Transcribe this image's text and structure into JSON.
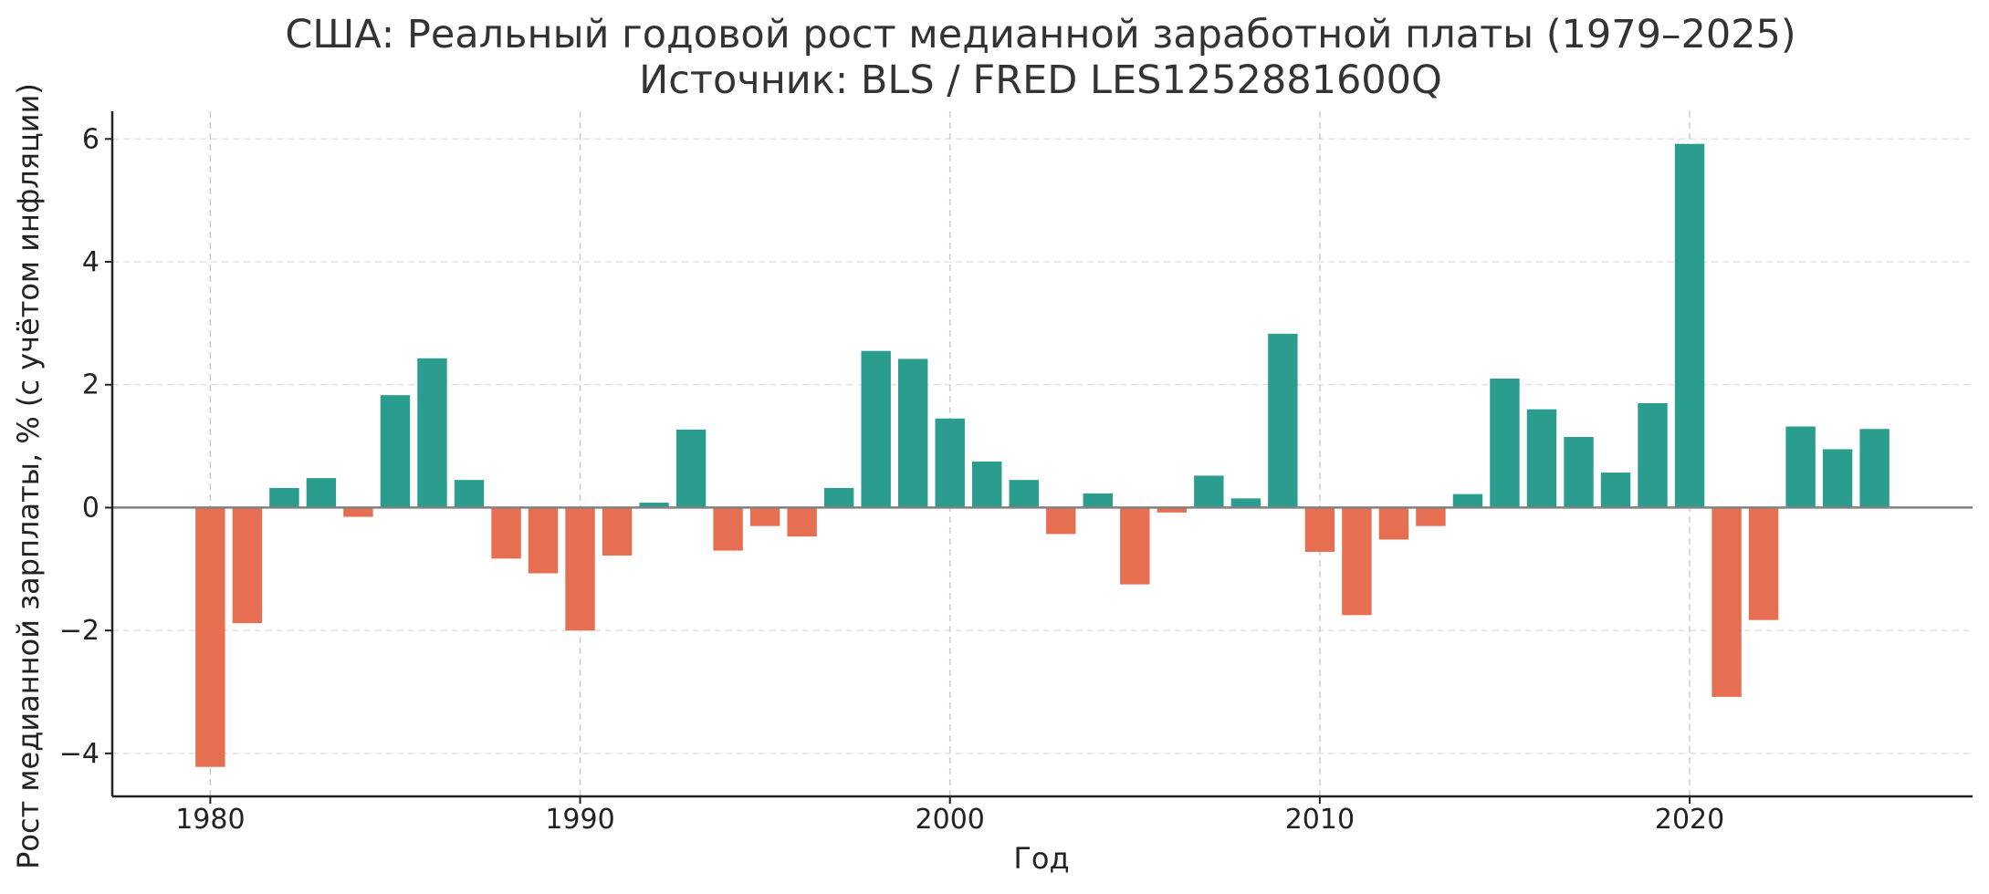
{
  "chart_data": {
    "type": "bar",
    "title": "США: Реальный годовой рост медианной заработной платы (1979–2025)",
    "subtitle": "Источник: BLS / FRED LES1252881600Q",
    "xlabel": "Год",
    "ylabel": "Рост медианной зарплаты, % (с учётом инфляции)",
    "xlim": [
      1977.35,
      2027.65
    ],
    "ylim": [
      -4.7,
      6.45
    ],
    "x_ticks": [
      1980,
      1990,
      2000,
      2010,
      2020
    ],
    "y_ticks": [
      -4,
      -2,
      0,
      2,
      4,
      6
    ],
    "y_tick_labels": [
      "−4",
      "−2",
      "0",
      "2",
      "4",
      "6"
    ],
    "grid": "dashed",
    "zero_line": true,
    "colors": {
      "positive": "#2a9d8f",
      "negative": "#e76f51"
    },
    "x": [
      1980,
      1981,
      1982,
      1983,
      1984,
      1985,
      1986,
      1987,
      1988,
      1989,
      1990,
      1991,
      1992,
      1993,
      1994,
      1995,
      1996,
      1997,
      1998,
      1999,
      2000,
      2001,
      2002,
      2003,
      2004,
      2005,
      2006,
      2007,
      2008,
      2009,
      2010,
      2011,
      2012,
      2013,
      2014,
      2015,
      2016,
      2017,
      2018,
      2019,
      2020,
      2021,
      2022,
      2023,
      2024,
      2025
    ],
    "values": [
      -4.22,
      -1.88,
      0.32,
      0.48,
      -0.15,
      1.83,
      2.43,
      0.45,
      -0.83,
      -1.07,
      -2.0,
      -0.78,
      0.08,
      1.27,
      -0.7,
      -0.3,
      -0.47,
      0.32,
      2.55,
      2.42,
      1.45,
      0.75,
      0.45,
      -0.43,
      0.23,
      -1.25,
      -0.08,
      0.52,
      0.15,
      2.83,
      -0.72,
      -1.75,
      -0.52,
      -0.3,
      0.22,
      2.1,
      1.6,
      1.15,
      0.57,
      1.7,
      5.92,
      -3.08,
      -1.83,
      1.32,
      0.95,
      1.28
    ]
  }
}
